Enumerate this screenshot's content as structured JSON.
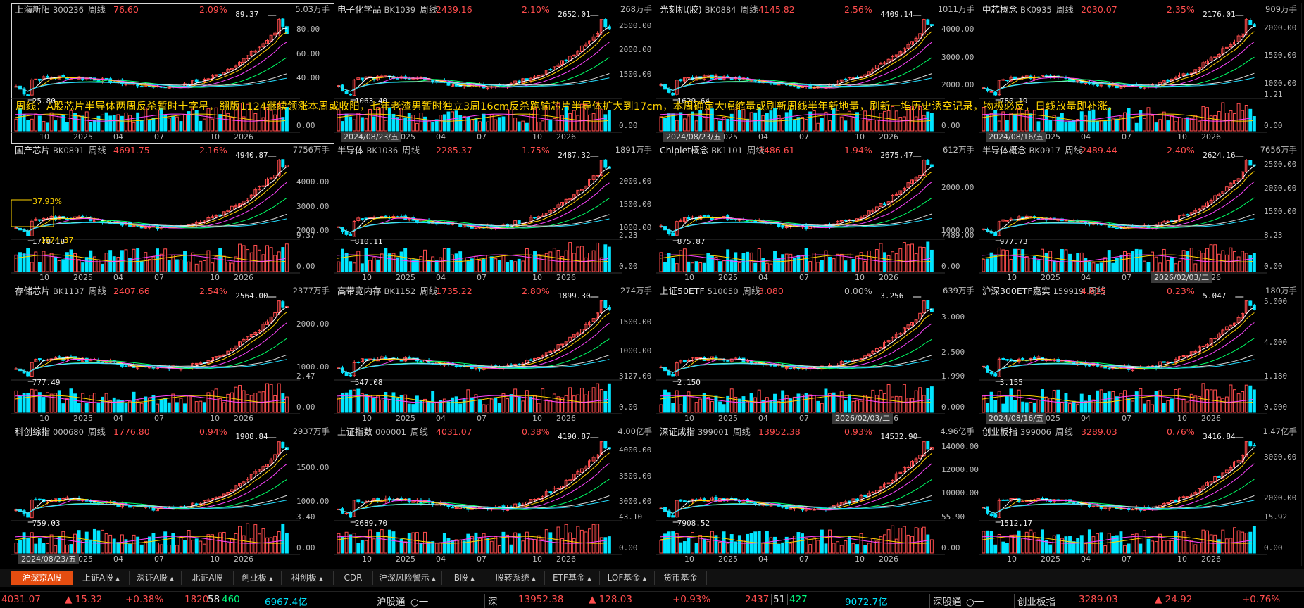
{
  "annotation": "周线：A股芯片半导体两周反杀暂时十字星，翻版1124继续领涨本周或收阳，七年老渣男暂时独立3周16cm反杀跑输芯片半导体扩大到17cm，本周确定大幅缩量或刷新周线半年新地量，刷新一堆历史诱空记录，物极必反，日线放量即补涨。",
  "colors": {
    "up": "#ff4d4d",
    "down": "#00e5ff",
    "annotation": "#ffd400",
    "tab_active": "#e54d10",
    "bg": "#000000"
  },
  "panels": [
    {
      "name": "上海新阳",
      "code": "300236",
      "period": "周线",
      "price": "76.60",
      "change": "2.09%",
      "volume": "5.03万手",
      "high_label": "89.37",
      "low_label": "25.80",
      "yticks": [
        "80.00",
        "60.00",
        "40.00"
      ],
      "vol_tick": "0.00",
      "xlabels": [
        "10",
        "2025",
        "04",
        "07",
        "10",
        "2026"
      ],
      "date_box": "",
      "chart_data": {
        "type": "candlestick",
        "range": [
          25.8,
          89.37
        ],
        "low": 25.8,
        "high": 89.37,
        "last": 76.6
      }
    },
    {
      "name": "电子化学品",
      "code": "BK1039",
      "period": "周线",
      "price": "2439.16",
      "change": "2.10%",
      "volume": "268万手",
      "high_label": "2652.01",
      "low_label": "1063.40",
      "yticks": [
        "2500.00",
        "2000.00",
        "1500.00"
      ],
      "vol_tick": "0.00",
      "xlabels": [
        "10",
        "2025",
        "04",
        "07",
        "10",
        "2026"
      ],
      "date_box": "2024/08/23/五",
      "chart_data": {
        "type": "candlestick",
        "range": [
          1063.4,
          2652.01
        ],
        "low": 1063.4,
        "high": 2652.01,
        "last": 2439.16
      }
    },
    {
      "name": "光刻机(胶)",
      "code": "BK0884",
      "period": "周线",
      "price": "4145.82",
      "change": "2.56%",
      "volume": "1011万手",
      "high_label": "4409.14",
      "low_label": "1629.64",
      "yticks": [
        "4000.00",
        "3000.00",
        "2000.00"
      ],
      "vol_tick": "0.00",
      "xlabels": [
        "10",
        "2025",
        "04",
        "07",
        "10",
        "2026"
      ],
      "date_box": "2024/08/23/五",
      "chart_data": {
        "type": "candlestick",
        "range": [
          1629.64,
          4409.14
        ],
        "low": 1629.64,
        "high": 4409.14,
        "last": 4145.82
      }
    },
    {
      "name": "中芯概念",
      "code": "BK0935",
      "period": "周线",
      "price": "2030.07",
      "change": "2.35%",
      "volume": "909万手",
      "high_label": "2176.01",
      "low_label": "780.19",
      "yticks": [
        "2000.00",
        "1500.00",
        "1000.00"
      ],
      "vol_tick": "0.00",
      "vol_tick_hi": "1.21",
      "xlabels": [
        "10",
        "2025",
        "04",
        "07",
        "10",
        "2026"
      ],
      "date_box": "2024/08/16/五",
      "chart_data": {
        "type": "candlestick",
        "range": [
          780.19,
          2176.01
        ],
        "low": 780.19,
        "high": 2176.01,
        "last": 2030.07
      }
    },
    {
      "name": "国产芯片",
      "code": "BK0891",
      "period": "周线",
      "price": "4691.75",
      "change": "2.16%",
      "volume": "7756万手",
      "high_label": "4940.87",
      "low_label": "1778.18",
      "low_label_2": "1874.37",
      "pct_tag": "37.93%",
      "yticks": [
        "4000.00",
        "3000.00",
        "2000.00"
      ],
      "vol_tick": "0.00",
      "vol_tick_hi": "9.37",
      "xlabels": [
        "10",
        "2025",
        "04",
        "07",
        "10",
        "2026"
      ],
      "date_box": "",
      "chart_data": {
        "type": "candlestick",
        "range": [
          1778.18,
          4940.87
        ],
        "low": 1778.18,
        "high": 4940.87,
        "last": 4691.75
      }
    },
    {
      "name": "半导体",
      "code": "BK1036",
      "period": "周线",
      "price": "2285.37",
      "change": "1.75%",
      "volume": "1891万手",
      "high_label": "2487.32",
      "low_label": "810.11",
      "yticks": [
        "2000.00",
        "1500.00",
        "1000.00"
      ],
      "vol_tick": "0.00",
      "vol_tick_hi": "2.23",
      "xlabels": [
        "10",
        "2025",
        "04",
        "07",
        "10",
        "2026"
      ],
      "date_box": "",
      "chart_data": {
        "type": "candlestick",
        "range": [
          810.11,
          2487.32
        ],
        "low": 810.11,
        "high": 2487.32,
        "last": 2285.37
      }
    },
    {
      "name": "Chiplet概念",
      "code": "BK1101",
      "period": "周线",
      "price": "2486.61",
      "change": "1.94%",
      "volume": "612万手",
      "high_label": "2675.47",
      "low_label": "875.87",
      "yticks": [
        "2000.00",
        "1000.00"
      ],
      "vol_tick": "0.00",
      "vol_tick_hi": "7489.00",
      "xlabels": [
        "10",
        "2025",
        "04",
        "07",
        "10",
        "2026"
      ],
      "date_box": "",
      "chart_data": {
        "type": "candlestick",
        "range": [
          875.87,
          2675.47
        ],
        "low": 875.87,
        "high": 2675.47,
        "last": 2486.61
      }
    },
    {
      "name": "半导体概念",
      "code": "BK0917",
      "period": "周线",
      "price": "2489.44",
      "change": "2.40%",
      "volume": "7656万手",
      "high_label": "2624.16",
      "low_label": "977.73",
      "yticks": [
        "2500.00",
        "2000.00",
        "1500.00"
      ],
      "vol_tick": "0.00",
      "vol_tick_hi": "8.23",
      "xlabels": [
        "10",
        "2025",
        "04",
        "07",
        "10",
        "2026"
      ],
      "date_box": "2026/02/03/二",
      "chart_data": {
        "type": "candlestick",
        "range": [
          977.73,
          2624.16
        ],
        "low": 977.73,
        "high": 2624.16,
        "last": 2489.44
      }
    },
    {
      "name": "存储芯片",
      "code": "BK1137",
      "period": "周线",
      "price": "2407.66",
      "change": "2.54%",
      "volume": "2377万手",
      "high_label": "2564.00",
      "low_label": "777.49",
      "yticks": [
        "2000.00",
        "1000.00"
      ],
      "vol_tick": "0.00",
      "vol_tick_hi": "2.47",
      "xlabels": [
        "10",
        "2025",
        "04",
        "07",
        "10",
        "2026"
      ],
      "date_box": "",
      "chart_data": {
        "type": "candlestick",
        "range": [
          777.49,
          2564.0
        ],
        "low": 777.49,
        "high": 2564.0,
        "last": 2407.66
      }
    },
    {
      "name": "高带宽内存",
      "code": "BK1152",
      "period": "周线",
      "price": "1735.22",
      "change": "2.80%",
      "volume": "274万手",
      "high_label": "1899.30",
      "low_label": "547.08",
      "yticks": [
        "1500.00",
        "1000.00"
      ],
      "vol_tick": "0.00",
      "vol_tick_hi": "3127.00",
      "xlabels": [
        "10",
        "2025",
        "04",
        "07",
        "10",
        "2026"
      ],
      "date_box": "",
      "chart_data": {
        "type": "candlestick",
        "range": [
          547.08,
          1899.3
        ],
        "low": 547.08,
        "high": 1899.3,
        "last": 1735.22
      }
    },
    {
      "name": "上证50ETF",
      "code": "510050",
      "period": "周线",
      "price": "3.080",
      "change": "0.00%",
      "volume": "639万手",
      "high_label": "3.256",
      "low_label": "2.150",
      "yticks": [
        "3.000",
        "2.500"
      ],
      "vol_tick": "0.000",
      "vol_tick_hi": "1.990",
      "xlabels": [
        "10",
        "2025",
        "04",
        "07",
        "10",
        "2026"
      ],
      "date_box": "2026/02/03/二",
      "flat": true,
      "chart_data": {
        "type": "candlestick",
        "range": [
          2.15,
          3.256
        ],
        "low": 2.15,
        "high": 3.256,
        "last": 3.08
      }
    },
    {
      "name": "沪深300ETF嘉实",
      "code": "159919",
      "period": "周线",
      "price": "4.815",
      "change": "0.23%",
      "volume": "180万手",
      "high_label": "5.047",
      "low_label": "3.155",
      "yticks": [
        "5.000",
        "4.000"
      ],
      "vol_tick": "0.000",
      "vol_tick_hi": "1.180",
      "xlabels": [
        "10",
        "2025",
        "04",
        "07",
        "10",
        "2026"
      ],
      "date_box": "2024/08/16/五",
      "chart_data": {
        "type": "candlestick",
        "range": [
          3.155,
          5.047
        ],
        "low": 3.155,
        "high": 5.047,
        "last": 4.815
      }
    },
    {
      "name": "科创综指",
      "code": "000680",
      "period": "周线",
      "price": "1776.80",
      "change": "0.94%",
      "volume": "2937万手",
      "high_label": "1908.84",
      "low_label": "759.03",
      "yticks": [
        "1500.00",
        "1000.00"
      ],
      "vol_tick": "0.00",
      "vol_tick_hi": "3.40",
      "xlabels": [
        "10",
        "2025",
        "04",
        "07",
        "10",
        "2026"
      ],
      "date_box": "2024/08/23/五",
      "chart_data": {
        "type": "candlestick",
        "range": [
          759.03,
          1908.84
        ],
        "low": 759.03,
        "high": 1908.84,
        "last": 1776.8
      }
    },
    {
      "name": "上证指数",
      "code": "000001",
      "period": "周线",
      "price": "4031.07",
      "change": "0.38%",
      "volume": "4.00亿手",
      "high_label": "4190.87",
      "low_label": "2689.70",
      "yticks": [
        "4000.00",
        "3500.00",
        "3000.00"
      ],
      "vol_tick": "0.00",
      "vol_tick_hi": "43.10",
      "xlabels": [
        "10",
        "2025",
        "04",
        "07",
        "10",
        "2026"
      ],
      "date_box": "",
      "chart_data": {
        "type": "candlestick",
        "range": [
          2689.7,
          4190.87
        ],
        "low": 2689.7,
        "high": 4190.87,
        "last": 4031.07
      }
    },
    {
      "name": "深证成指",
      "code": "399001",
      "period": "周线",
      "price": "13952.38",
      "change": "0.93%",
      "volume": "4.96亿手",
      "high_label": "14532.90",
      "low_label": "7908.52",
      "yticks": [
        "14000.00",
        "12000.00",
        "10000.00"
      ],
      "vol_tick": "0.00",
      "vol_tick_hi": "55.90",
      "xlabels": [
        "10",
        "2025",
        "04",
        "07",
        "10",
        "2026"
      ],
      "date_box": "",
      "chart_data": {
        "type": "candlestick",
        "range": [
          7908.52,
          14532.9
        ],
        "low": 7908.52,
        "high": 14532.9,
        "last": 13952.38
      }
    },
    {
      "name": "创业板指",
      "code": "399006",
      "period": "周线",
      "price": "3289.03",
      "change": "0.76%",
      "volume": "1.47亿手",
      "high_label": "3416.84",
      "low_label": "1512.17",
      "yticks": [
        "3000.00",
        "2000.00"
      ],
      "vol_tick": "0.00",
      "vol_tick_hi": "15.92",
      "xlabels": [
        "10",
        "2025",
        "04",
        "07",
        "10",
        "2026"
      ],
      "date_box": "",
      "chart_data": {
        "type": "candlestick",
        "range": [
          1512.17,
          3416.84
        ],
        "low": 1512.17,
        "high": 3416.84,
        "last": 3289.03
      }
    }
  ],
  "tabs": [
    {
      "label": "沪深京A股",
      "arrow": "",
      "active": true
    },
    {
      "label": "上证A股",
      "arrow": "▲"
    },
    {
      "label": "深证A股",
      "arrow": "▲"
    },
    {
      "label": "北证A股",
      "arrow": ""
    },
    {
      "label": "创业板",
      "arrow": "▲"
    },
    {
      "label": "科创板",
      "arrow": "▲"
    },
    {
      "label": "CDR",
      "arrow": ""
    },
    {
      "label": "沪深风险警示",
      "arrow": "▲"
    },
    {
      "label": "B股",
      "arrow": "▲"
    },
    {
      "label": "股转系统",
      "arrow": "▲"
    },
    {
      "label": "ETF基金",
      "arrow": "▲"
    },
    {
      "label": "LOF基金",
      "arrow": "▲"
    },
    {
      "label": "货币基金",
      "arrow": ""
    }
  ],
  "status": {
    "sh_value": "4031.07",
    "sh_change": "▲ 15.32",
    "sh_pct": "+0.38%",
    "sh_up": "1820",
    "sh_flat": "58",
    "sh_down": "460",
    "sh_amount": "6967.4亿",
    "hk_connect_sh": "沪股通",
    "hk_connect_sh_status": "○一",
    "sz_label": "深",
    "sz_value": "13952.38",
    "sz_change": "▲ 128.03",
    "sz_pct": "+0.93%",
    "sz_up": "2437",
    "sz_flat": "51",
    "sz_down": "427",
    "sz_amount": "9072.7亿",
    "hk_connect_sz": "深股通",
    "hk_connect_sz_status": "○一",
    "cy_label": "创业板指",
    "cy_value": "3289.03",
    "cy_change": "▲ 24.92",
    "cy_pct": "+0.76%"
  }
}
